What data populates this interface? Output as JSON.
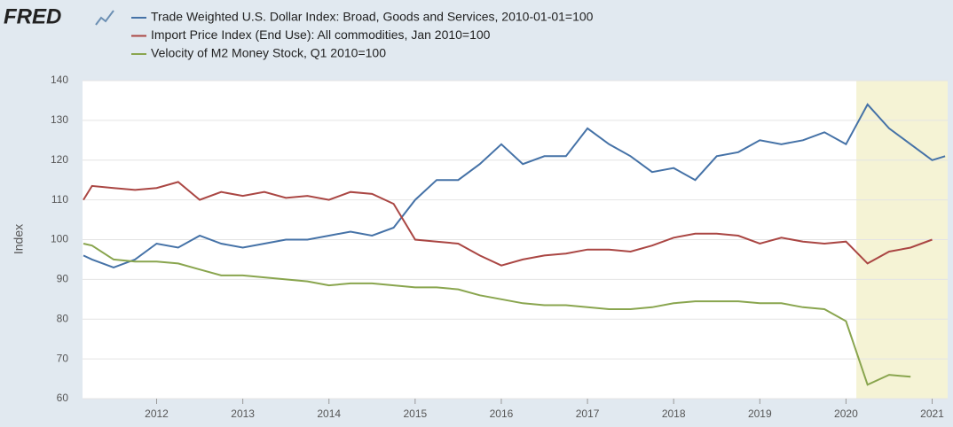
{
  "logo": "FRED",
  "chart_data": {
    "type": "line",
    "y_label": "Index",
    "x": [
      2011.15,
      2011.25,
      2011.5,
      2011.75,
      2012.0,
      2012.25,
      2012.5,
      2012.75,
      2013.0,
      2013.25,
      2013.5,
      2013.75,
      2014.0,
      2014.25,
      2014.5,
      2014.75,
      2015.0,
      2015.25,
      2015.5,
      2015.75,
      2016.0,
      2016.25,
      2016.5,
      2016.75,
      2017.0,
      2017.25,
      2017.5,
      2017.75,
      2018.0,
      2018.25,
      2018.5,
      2018.75,
      2019.0,
      2019.25,
      2019.5,
      2019.75,
      2020.0,
      2020.25,
      2020.5,
      2020.75,
      2021.0,
      2021.15
    ],
    "series": [
      {
        "name": "Trade Weighted U.S. Dollar Index: Broad, Goods and Services, 2010-01-01=100",
        "color": "#4572a7",
        "values": [
          96,
          95,
          93,
          95,
          99,
          98,
          101,
          99,
          98,
          99,
          100,
          100,
          101,
          102,
          101,
          103,
          110,
          115,
          115,
          119,
          124,
          119,
          121,
          121,
          128,
          124,
          121,
          117,
          118,
          115,
          121,
          122,
          125,
          124,
          125,
          127,
          124,
          134,
          128,
          124,
          120,
          121
        ]
      },
      {
        "name": "Import Price Index (End Use): All commodities, Jan 2010=100",
        "color": "#aa4643",
        "values": [
          110,
          113.5,
          113,
          112.5,
          113,
          114.5,
          110,
          112,
          111,
          112,
          110.5,
          111,
          110,
          112,
          111.5,
          109,
          100,
          99.5,
          99,
          96,
          93.5,
          95,
          96,
          96.5,
          97.5,
          97.5,
          97,
          98.5,
          100.5,
          101.5,
          101.5,
          101,
          99,
          100.5,
          99.5,
          99,
          99.5,
          94,
          97,
          98,
          100,
          null
        ]
      },
      {
        "name": "Velocity of M2 Money Stock, Q1 2010=100",
        "color": "#89a54e",
        "values": [
          99,
          98.5,
          95,
          94.5,
          94.5,
          94,
          92.5,
          91,
          91,
          90.5,
          90,
          89.5,
          88.5,
          89,
          89,
          88.5,
          88,
          88,
          87.5,
          86,
          85,
          84,
          83.5,
          83.5,
          83,
          82.5,
          82.5,
          83,
          84,
          84.5,
          84.5,
          84.5,
          84,
          84,
          83,
          82.5,
          79.5,
          63.5,
          66,
          65.5,
          null,
          null
        ]
      }
    ],
    "shaded_range": [
      2020.12,
      2021.18
    ],
    "xlim": [
      2011.14,
      2021.18
    ],
    "xticks": [
      2012,
      2013,
      2014,
      2015,
      2016,
      2017,
      2018,
      2019,
      2020,
      2021
    ],
    "ylim": [
      60,
      140
    ],
    "yticks": [
      60,
      70,
      80,
      90,
      100,
      110,
      120,
      130,
      140
    ],
    "grid": true
  }
}
